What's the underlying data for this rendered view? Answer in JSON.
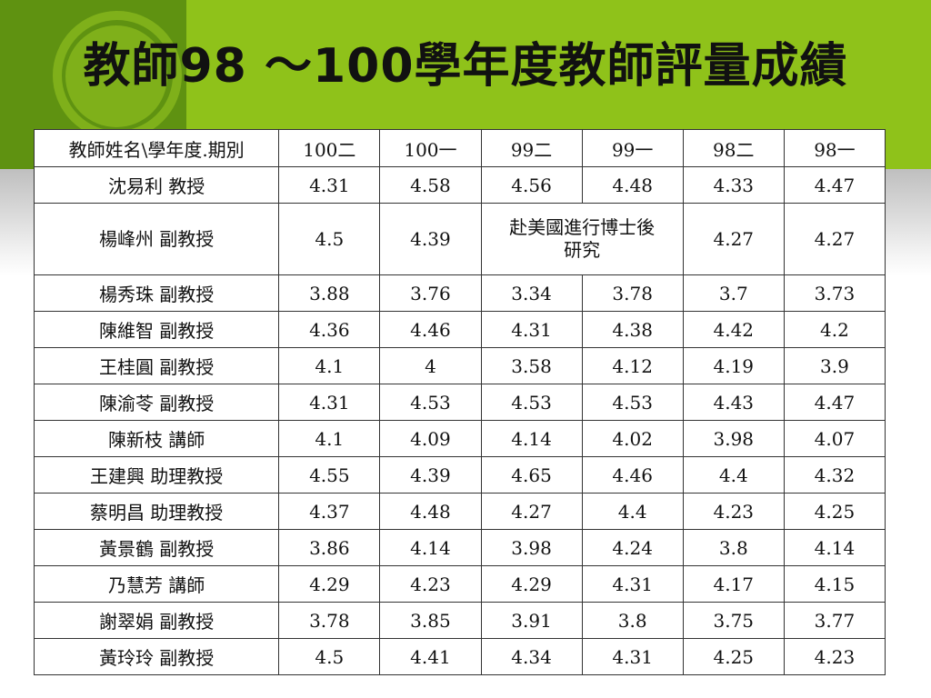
{
  "slide": {
    "title": "教師98 ～100學年度教師評量成績"
  },
  "table": {
    "header": [
      "教師姓名\\學年度.期別",
      "100二",
      "100一",
      "99二",
      "99一",
      "98二",
      "98一"
    ],
    "rows": [
      {
        "name": "沈易利  教授",
        "scores": [
          "4.31",
          "4.58",
          "4.56",
          "4.48",
          "4.33",
          "4.47"
        ]
      },
      {
        "name": "楊峰州  副教授",
        "s100_2": "4.5",
        "s100_1": "4.39",
        "note": "赴美國進行博士後研究",
        "s98_2": "4.27",
        "s98_1": "4.27"
      },
      {
        "name": "楊秀珠  副教授",
        "scores": [
          "3.88",
          "3.76",
          "3.34",
          "3.78",
          "3.7",
          "3.73"
        ]
      },
      {
        "name": "陳維智  副教授",
        "scores": [
          "4.36",
          "4.46",
          "4.31",
          "4.38",
          "4.42",
          "4.2"
        ]
      },
      {
        "name": "王桂圓  副教授",
        "scores": [
          "4.1",
          "4",
          "3.58",
          "4.12",
          "4.19",
          "3.9"
        ]
      },
      {
        "name": "陳渝苓  副教授",
        "scores": [
          "4.31",
          "4.53",
          "4.53",
          "4.53",
          "4.43",
          "4.47"
        ]
      },
      {
        "name": "陳新枝  講師",
        "scores": [
          "4.1",
          "4.09",
          "4.14",
          "4.02",
          "3.98",
          "4.07"
        ]
      },
      {
        "name": "王建興  助理教授",
        "scores": [
          "4.55",
          "4.39",
          "4.65",
          "4.46",
          "4.4",
          "4.32"
        ]
      },
      {
        "name": "蔡明昌  助理教授",
        "scores": [
          "4.37",
          "4.48",
          "4.27",
          "4.4",
          "4.23",
          "4.25"
        ]
      },
      {
        "name": "黃景鶴  副教授",
        "scores": [
          "3.86",
          "4.14",
          "3.98",
          "4.24",
          "3.8",
          "4.14"
        ]
      },
      {
        "name": "乃慧芳  講師",
        "scores": [
          "4.29",
          "4.23",
          "4.29",
          "4.31",
          "4.17",
          "4.15"
        ]
      },
      {
        "name": "謝翠娟  副教授",
        "scores": [
          "3.78",
          "3.85",
          "3.91",
          "3.8",
          "3.75",
          "3.77"
        ]
      },
      {
        "name": "黃玲玲  副教授",
        "scores": [
          "4.5",
          "4.41",
          "4.34",
          "4.31",
          "4.25",
          "4.23"
        ]
      }
    ]
  },
  "colors": {
    "header_dark_green": "#5f9211",
    "header_light_green": "#8fc21a",
    "circle_green": "#7fb01a"
  }
}
